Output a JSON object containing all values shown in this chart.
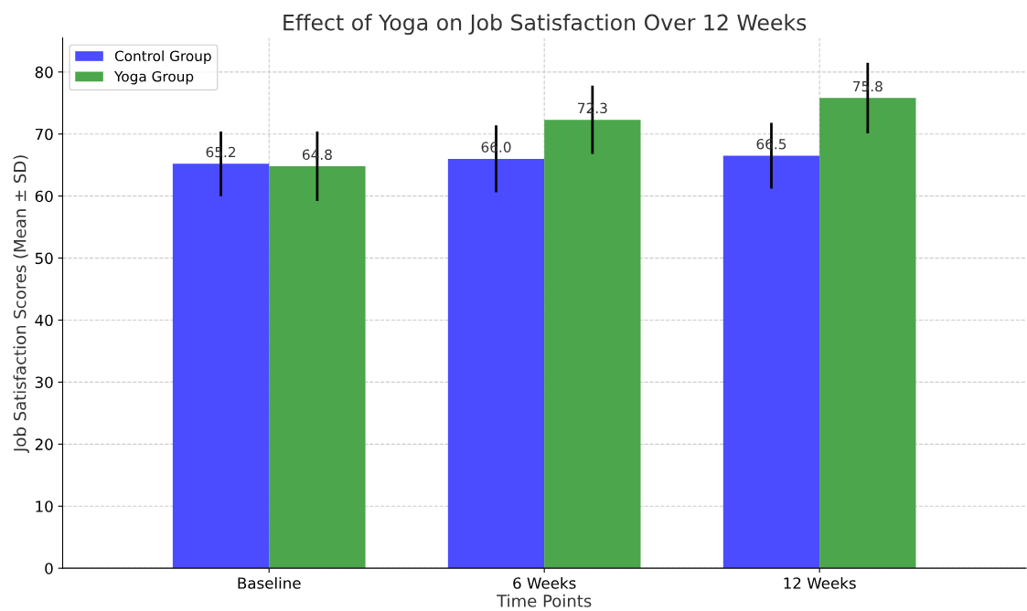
{
  "chart_data": {
    "type": "bar",
    "title": "Effect of Yoga on Job Satisfaction Over 12 Weeks",
    "xlabel": "Time Points",
    "ylabel": "Job Satisfaction Scores (Mean ± SD)",
    "categories": [
      "Baseline",
      "6 Weeks",
      "12 Weeks"
    ],
    "series": [
      {
        "name": "Control Group",
        "color": "#4b4bff",
        "values": [
          65.2,
          66.0,
          66.5
        ],
        "errors": [
          5.2,
          5.4,
          5.3
        ],
        "value_labels": [
          "65.2",
          "66.0",
          "66.5"
        ]
      },
      {
        "name": "Yoga Group",
        "color": "#4ca64c",
        "values": [
          64.8,
          72.3,
          75.8
        ],
        "errors": [
          5.6,
          5.5,
          5.7
        ],
        "value_labels": [
          "64.8",
          "72.3",
          "75.8"
        ]
      }
    ],
    "ylim": [
      0,
      85.5
    ],
    "yticks": [
      0,
      10,
      20,
      30,
      40,
      50,
      60,
      70,
      80
    ],
    "grid": true,
    "legend": "top left"
  }
}
